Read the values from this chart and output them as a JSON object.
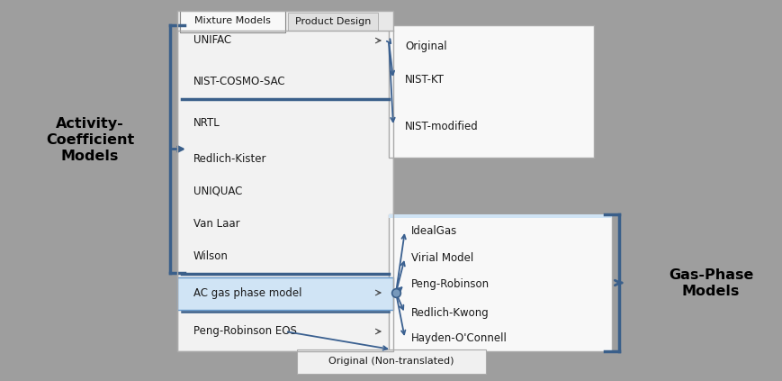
{
  "bg_color": "#9e9e9e",
  "menu_bg": "#f2f2f2",
  "menu_bg2": "#ffffff",
  "submenu_bg": "#f5f5f5",
  "highlight_bg": "#d0e4f5",
  "highlight_border": "#6699cc",
  "blue_line_color": "#3a5f8a",
  "arrow_color": "#3a6090",
  "text_color": "#1a1a1a",
  "label_color": "#000000",
  "border_color": "#aaaaaa",
  "tab_active_bg": "#f8f8f8",
  "tab_inactive_bg": "#e0e0e0",
  "title_tabs": [
    "Mixture Models",
    "Product Design"
  ],
  "main_menu_items": [
    {
      "text": "UNIFAC",
      "has_arrow": true,
      "row": 0
    },
    {
      "text": "NIST-COSMO-SAC",
      "has_arrow": false,
      "row": 1
    },
    {
      "text": "NRTL",
      "has_arrow": false,
      "row": 2
    },
    {
      "text": "Redlich-Kister",
      "has_arrow": false,
      "row": 3
    },
    {
      "text": "UNIQUAC",
      "has_arrow": false,
      "row": 4
    },
    {
      "text": "Van Laar",
      "has_arrow": false,
      "row": 5
    },
    {
      "text": "Wilson",
      "has_arrow": false,
      "row": 6
    },
    {
      "text": "AC gas phase model",
      "has_arrow": true,
      "row": 7,
      "highlighted": true
    },
    {
      "text": "Peng-Robinson EOS",
      "has_arrow": true,
      "row": 8
    }
  ],
  "submenu1_items": [
    "Original",
    "NIST-KT",
    "NIST-modified"
  ],
  "submenu2_items": [
    "IdealGas",
    "Virial Model",
    "Peng-Robinson",
    "Redlich-Kwong",
    "Hayden-O'Connell"
  ],
  "bottom_tooltip": "Original (Non-translated)",
  "activity_label": "Activity-\nCoefficient\nModels",
  "gas_label": "Gas-Phase\nModels",
  "fontsize_menu": 8.5,
  "fontsize_label": 11.5
}
